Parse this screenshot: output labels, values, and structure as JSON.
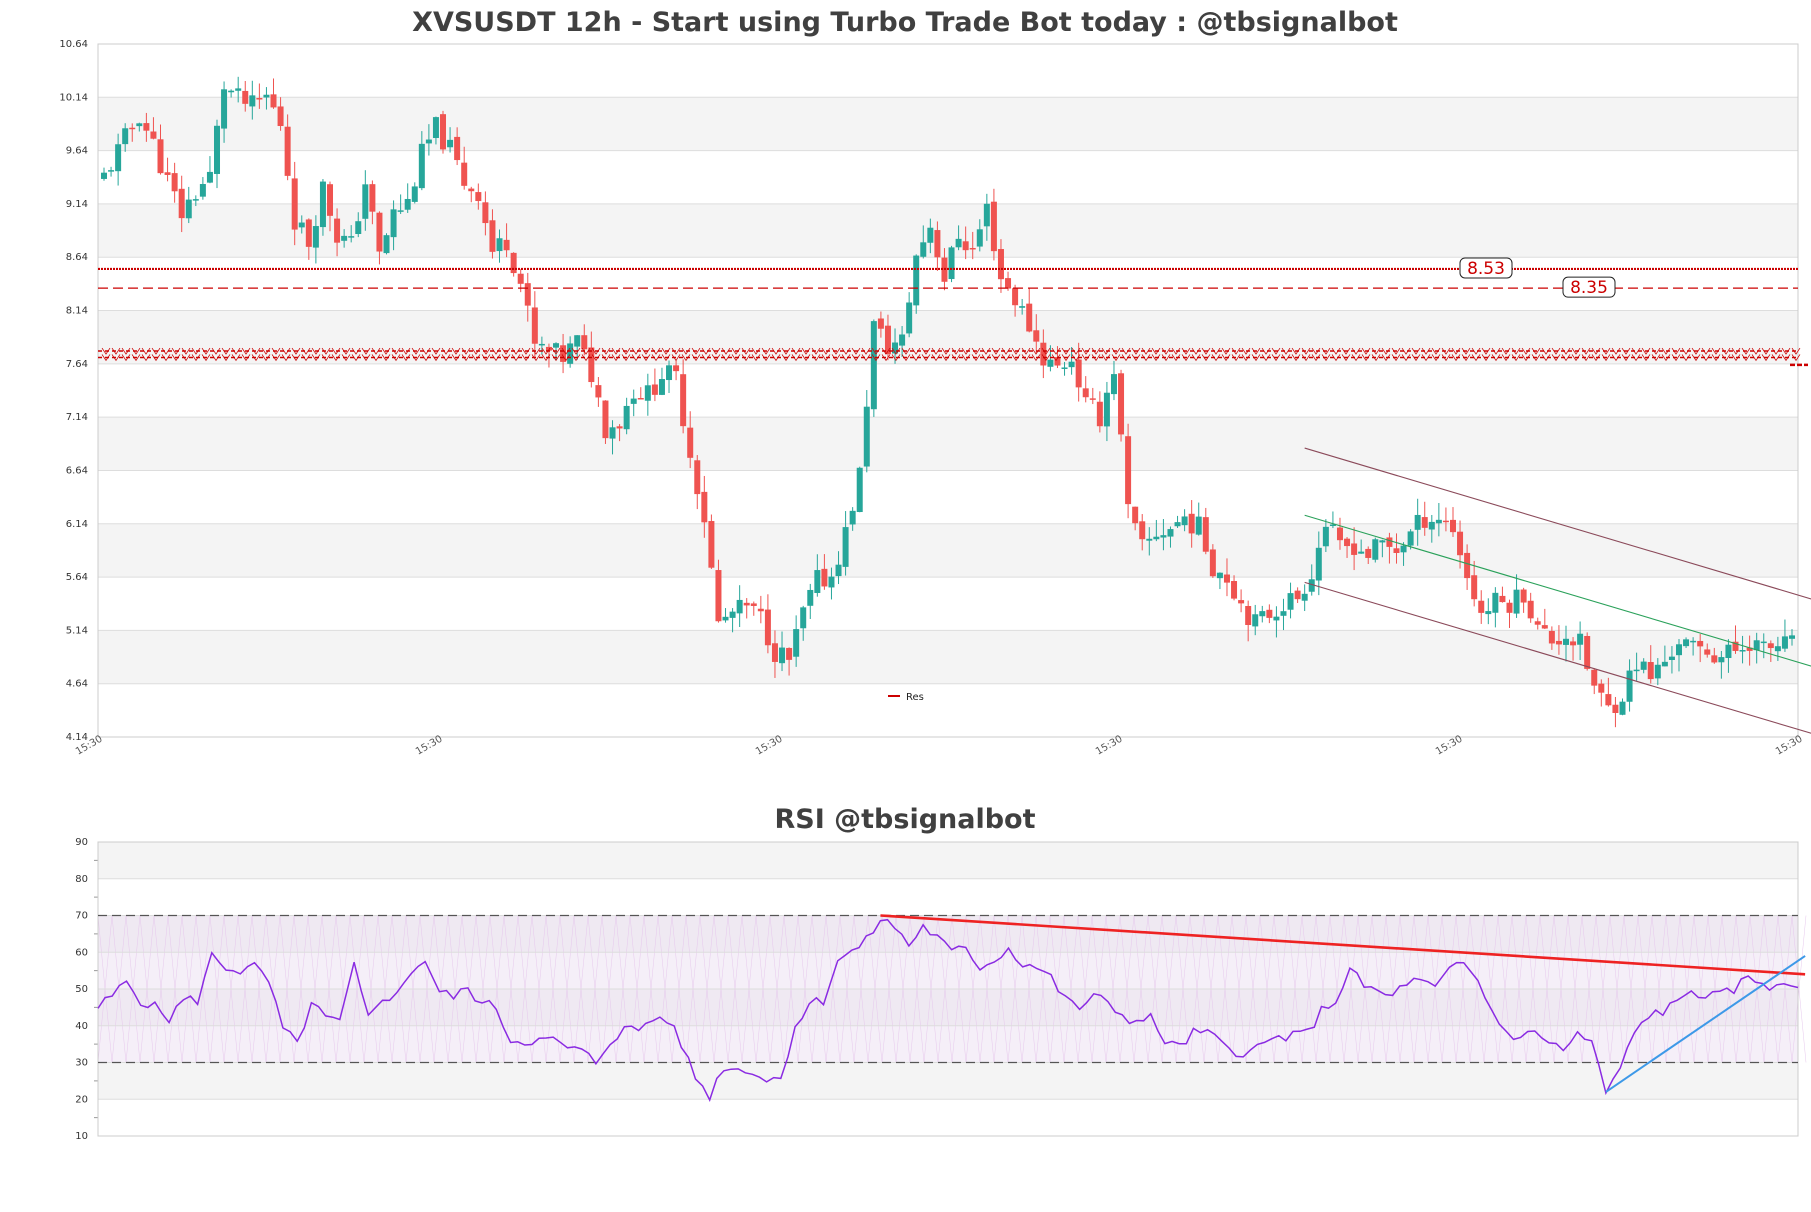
{
  "colors": {
    "up": "#26a69a",
    "down": "#ef5350",
    "band": "#f4f4f4",
    "grid": "#dddddd",
    "level": "#cc0000",
    "channel": "#8b4a5a",
    "midline": "#2aa15a",
    "rsi": "#8a2be2",
    "rsi_resistance": "#ee2222",
    "rsi_support": "#3d99e8"
  },
  "chart_data": [
    {
      "type": "candlestick",
      "title": "XVSUSDT 12h - Start using Turbo Trade Bot today : @tbsignalbot",
      "ylim": [
        4.14,
        10.64
      ],
      "yticks": [
        "10.64",
        "10.14",
        "9.64",
        "9.14",
        "8.64",
        "8.14",
        "7.64",
        "7.14",
        "6.64",
        "6.14",
        "5.64",
        "5.14",
        "4.64",
        "4.14"
      ],
      "xticks": [
        "15:30",
        "15:30",
        "15:30",
        "15:30",
        "15:30",
        "15:30"
      ],
      "legend": [
        "Res"
      ],
      "levels": [
        {
          "value": 8.53,
          "label": "8.53",
          "style": "dotted"
        },
        {
          "value": 8.35,
          "label": "8.35",
          "style": "dashed"
        },
        {
          "value": 7.76,
          "label": "",
          "style": "zigzag"
        },
        {
          "value": 7.7,
          "label": "",
          "style": "zigzag"
        }
      ],
      "channel": {
        "upper": [
          [
            170,
            6.85
          ],
          [
            245,
            5.37
          ]
        ],
        "middle": [
          [
            170,
            6.22
          ],
          [
            245,
            4.74
          ]
        ],
        "lower": [
          [
            170,
            5.59
          ],
          [
            245,
            4.11
          ]
        ]
      },
      "close_points": [
        [
          0,
          9.4
        ],
        [
          3,
          9.75
        ],
        [
          5,
          9.98
        ],
        [
          7,
          9.7
        ],
        [
          9,
          9.35
        ],
        [
          11,
          9.05
        ],
        [
          13,
          9.25
        ],
        [
          15,
          9.4
        ],
        [
          17,
          10.25
        ],
        [
          19,
          10.12
        ],
        [
          21,
          10.05
        ],
        [
          23,
          10.15
        ],
        [
          25,
          9.9
        ],
        [
          27,
          9.0
        ],
        [
          29,
          8.78
        ],
        [
          31,
          9.3
        ],
        [
          33,
          8.85
        ],
        [
          35,
          8.75
        ],
        [
          37,
          9.35
        ],
        [
          39,
          8.65
        ],
        [
          41,
          9.05
        ],
        [
          43,
          9.15
        ],
        [
          45,
          9.6
        ],
        [
          47,
          9.85
        ],
        [
          49,
          9.65
        ],
        [
          51,
          9.35
        ],
        [
          53,
          9.25
        ],
        [
          55,
          8.7
        ],
        [
          57,
          8.8
        ],
        [
          59,
          8.4
        ],
        [
          61,
          7.8
        ],
        [
          63,
          7.75
        ],
        [
          65,
          7.7
        ],
        [
          67,
          7.85
        ],
        [
          69,
          7.55
        ],
        [
          71,
          7.05
        ],
        [
          73,
          7.1
        ],
        [
          75,
          7.4
        ],
        [
          77,
          7.35
        ],
        [
          79,
          7.55
        ],
        [
          81,
          7.5
        ],
        [
          83,
          6.8
        ],
        [
          85,
          6.2
        ],
        [
          87,
          5.2
        ],
        [
          89,
          5.3
        ],
        [
          91,
          5.35
        ],
        [
          93,
          5.25
        ],
        [
          95,
          4.95
        ],
        [
          97,
          4.85
        ],
        [
          99,
          5.3
        ],
        [
          101,
          5.6
        ],
        [
          103,
          5.65
        ],
        [
          105,
          6.05
        ],
        [
          107,
          6.6
        ],
        [
          109,
          8.0
        ],
        [
          111,
          7.8
        ],
        [
          113,
          7.85
        ],
        [
          115,
          8.65
        ],
        [
          117,
          8.95
        ],
        [
          119,
          8.45
        ],
        [
          121,
          8.85
        ],
        [
          123,
          8.7
        ],
        [
          125,
          9.1
        ],
        [
          127,
          8.45
        ],
        [
          129,
          8.25
        ],
        [
          131,
          8.0
        ],
        [
          133,
          7.7
        ],
        [
          135,
          7.6
        ],
        [
          137,
          7.7
        ],
        [
          139,
          7.25
        ],
        [
          141,
          7.15
        ],
        [
          143,
          7.6
        ],
        [
          145,
          6.25
        ],
        [
          147,
          5.9
        ],
        [
          149,
          6.05
        ],
        [
          151,
          6.1
        ],
        [
          153,
          6.2
        ],
        [
          155,
          6.1
        ],
        [
          157,
          5.75
        ],
        [
          159,
          5.65
        ],
        [
          161,
          5.4
        ],
        [
          163,
          5.2
        ],
        [
          165,
          5.3
        ],
        [
          167,
          5.4
        ],
        [
          169,
          5.45
        ],
        [
          171,
          5.7
        ],
        [
          173,
          6.15
        ],
        [
          175,
          5.9
        ],
        [
          177,
          5.95
        ],
        [
          179,
          5.85
        ],
        [
          181,
          5.95
        ],
        [
          183,
          5.9
        ],
        [
          185,
          6.05
        ],
        [
          187,
          6.2
        ],
        [
          189,
          6.2
        ],
        [
          191,
          6.1
        ],
        [
          193,
          5.65
        ],
        [
          195,
          5.3
        ],
        [
          197,
          5.4
        ],
        [
          199,
          5.4
        ],
        [
          201,
          5.5
        ],
        [
          203,
          5.15
        ],
        [
          205,
          5.05
        ],
        [
          207,
          5.1
        ],
        [
          209,
          5.0
        ],
        [
          211,
          4.6
        ],
        [
          213,
          4.4
        ],
        [
          215,
          4.55
        ],
        [
          217,
          4.85
        ],
        [
          219,
          4.7
        ],
        [
          221,
          4.85
        ],
        [
          223,
          5.05
        ],
        [
          225,
          4.95
        ],
        [
          227,
          4.95
        ],
        [
          229,
          4.9
        ],
        [
          231,
          4.95
        ],
        [
          233,
          5.05
        ],
        [
          235,
          4.95
        ],
        [
          237,
          5.0
        ]
      ]
    },
    {
      "type": "line",
      "title": "RSI @tbsignalbot",
      "ylim": [
        10,
        90
      ],
      "yticks": [
        "90",
        "80",
        "70",
        "60",
        "50",
        "40",
        "30",
        "20",
        "10"
      ],
      "dashed_levels": [
        70,
        30
      ],
      "hatched_band": [
        30,
        70
      ],
      "rsi_points": [
        [
          0,
          45
        ],
        [
          2,
          48
        ],
        [
          4,
          52
        ],
        [
          6,
          47
        ],
        [
          8,
          45
        ],
        [
          10,
          42
        ],
        [
          12,
          47
        ],
        [
          14,
          47
        ],
        [
          16,
          59
        ],
        [
          18,
          56
        ],
        [
          20,
          55
        ],
        [
          22,
          56
        ],
        [
          24,
          52
        ],
        [
          26,
          39
        ],
        [
          28,
          35
        ],
        [
          30,
          46
        ],
        [
          32,
          42
        ],
        [
          34,
          41
        ],
        [
          36,
          56
        ],
        [
          38,
          42
        ],
        [
          40,
          48
        ],
        [
          42,
          48
        ],
        [
          44,
          55
        ],
        [
          46,
          58
        ],
        [
          48,
          49
        ],
        [
          50,
          48
        ],
        [
          52,
          50
        ],
        [
          54,
          46
        ],
        [
          56,
          45
        ],
        [
          58,
          36
        ],
        [
          60,
          36
        ],
        [
          62,
          36
        ],
        [
          64,
          36
        ],
        [
          66,
          34
        ],
        [
          68,
          33
        ],
        [
          70,
          30
        ],
        [
          72,
          36
        ],
        [
          74,
          39
        ],
        [
          76,
          39
        ],
        [
          78,
          42
        ],
        [
          80,
          42
        ],
        [
          82,
          35
        ],
        [
          84,
          26
        ],
        [
          86,
          21
        ],
        [
          88,
          29
        ],
        [
          90,
          28
        ],
        [
          92,
          28
        ],
        [
          94,
          25
        ],
        [
          96,
          26
        ],
        [
          98,
          40
        ],
        [
          100,
          46
        ],
        [
          102,
          47
        ],
        [
          104,
          58
        ],
        [
          106,
          60
        ],
        [
          108,
          63
        ],
        [
          110,
          69
        ],
        [
          112,
          67
        ],
        [
          114,
          62
        ],
        [
          116,
          67
        ],
        [
          118,
          64
        ],
        [
          120,
          60
        ],
        [
          122,
          61
        ],
        [
          124,
          56
        ],
        [
          126,
          58
        ],
        [
          128,
          61
        ],
        [
          130,
          57
        ],
        [
          132,
          56
        ],
        [
          134,
          53
        ],
        [
          136,
          47
        ],
        [
          138,
          45
        ],
        [
          140,
          48
        ],
        [
          142,
          46
        ],
        [
          144,
          43
        ],
        [
          146,
          41
        ],
        [
          148,
          42
        ],
        [
          150,
          36
        ],
        [
          152,
          34
        ],
        [
          154,
          38
        ],
        [
          156,
          38
        ],
        [
          158,
          35
        ],
        [
          160,
          33
        ],
        [
          162,
          33
        ],
        [
          164,
          35
        ],
        [
          166,
          37
        ],
        [
          168,
          37
        ],
        [
          170,
          38
        ],
        [
          172,
          44
        ],
        [
          174,
          47
        ],
        [
          176,
          55
        ],
        [
          178,
          51
        ],
        [
          180,
          49
        ],
        [
          182,
          48
        ],
        [
          184,
          52
        ],
        [
          186,
          52
        ],
        [
          188,
          50
        ],
        [
          190,
          55
        ],
        [
          192,
          57
        ],
        [
          194,
          52
        ],
        [
          196,
          44
        ],
        [
          198,
          38
        ],
        [
          200,
          37
        ],
        [
          202,
          38
        ],
        [
          204,
          36
        ],
        [
          206,
          33
        ],
        [
          208,
          38
        ],
        [
          210,
          35
        ],
        [
          212,
          22
        ],
        [
          214,
          28
        ],
        [
          216,
          38
        ],
        [
          218,
          43
        ],
        [
          220,
          44
        ],
        [
          222,
          46
        ],
        [
          224,
          50
        ],
        [
          226,
          48
        ],
        [
          228,
          48
        ],
        [
          230,
          50
        ],
        [
          232,
          53
        ],
        [
          234,
          52
        ],
        [
          236,
          50
        ],
        [
          237,
          51
        ]
      ],
      "trendlines": [
        {
          "from": [
            110,
            70
          ],
          "to": [
            240,
            54
          ],
          "role": "resistance"
        },
        {
          "from": [
            212,
            22
          ],
          "to": [
            240,
            59
          ],
          "role": "support"
        }
      ]
    }
  ]
}
